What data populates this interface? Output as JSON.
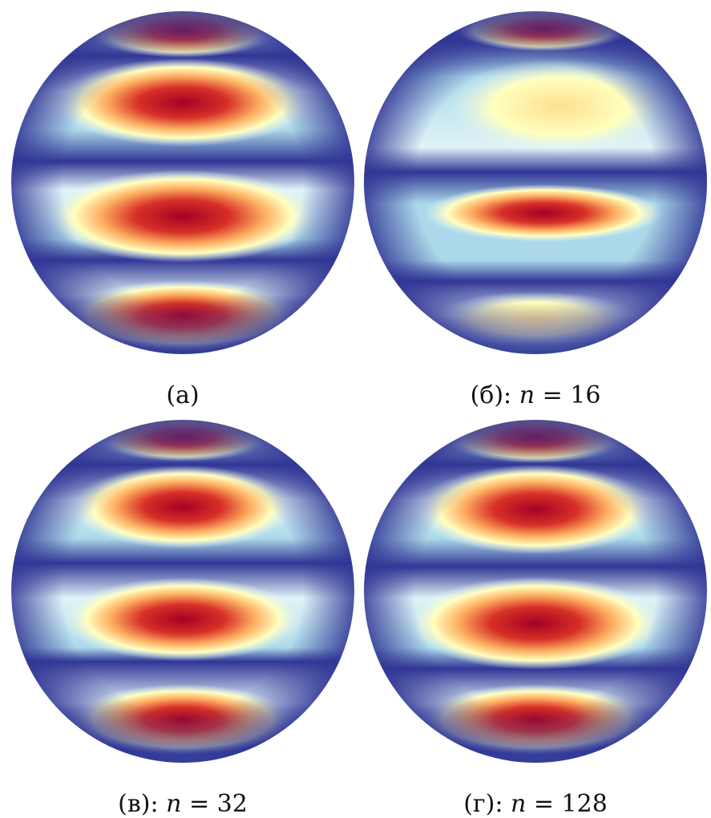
{
  "figure": {
    "panels": [
      {
        "caption_prefix": "(а)",
        "var": "",
        "eq": "",
        "value": ""
      },
      {
        "caption_prefix": "(б):",
        "var": "n",
        "eq": "=",
        "value": "16"
      },
      {
        "caption_prefix": "(в):",
        "var": "n",
        "eq": "=",
        "value": "32"
      },
      {
        "caption_prefix": "(г):",
        "var": "n",
        "eq": "=",
        "value": "128"
      }
    ],
    "colormap": [
      "#313695",
      "#4575b4",
      "#abd9e9",
      "#ffffbf",
      "#fdae61",
      "#d73027",
      "#a50026"
    ]
  }
}
